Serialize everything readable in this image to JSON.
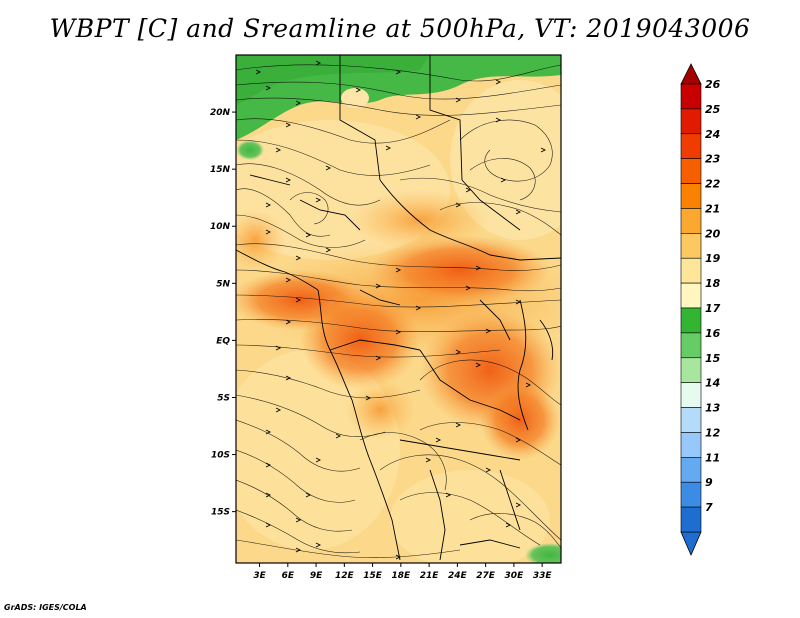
{
  "title": "WBPT [C] and Sreamline at 500hPa, VT: 2019043006",
  "credit": "GrADS: IGES/COLA",
  "lat_labels": [
    "20N",
    "15N",
    "10N",
    "5N",
    "EQ",
    "5S",
    "10S",
    "15S"
  ],
  "lat_values": [
    20,
    15,
    10,
    5,
    0,
    -5,
    -10,
    -15
  ],
  "lon_labels": [
    "3E",
    "6E",
    "9E",
    "12E",
    "15E",
    "18E",
    "21E",
    "24E",
    "27E",
    "30E",
    "33E"
  ],
  "lon_values": [
    3,
    6,
    9,
    12,
    15,
    18,
    21,
    24,
    27,
    30,
    33
  ],
  "map_extent": {
    "lon_min": 0.5,
    "lon_max": 35,
    "lat_min": -19.5,
    "lat_max": 25
  },
  "legend": {
    "labels": [
      "26",
      "25",
      "24",
      "23",
      "22",
      "21",
      "20",
      "19",
      "18",
      "17",
      "16",
      "15",
      "14",
      "13",
      "12",
      "11",
      "9",
      "7"
    ],
    "colors": [
      "#a50000",
      "#c80000",
      "#e11b00",
      "#f03c00",
      "#f55f00",
      "#fa8200",
      "#fba830",
      "#fcc860",
      "#fde59a",
      "#fff6c0",
      "#33b433",
      "#66cc66",
      "#a8e6a0",
      "#e6faf0",
      "#b4dcfa",
      "#96c8fa",
      "#64aaf0",
      "#3c8ce6",
      "#1e6ed2"
    ]
  },
  "icons": {
    "streamline_arrow": "arrowhead-icon"
  }
}
